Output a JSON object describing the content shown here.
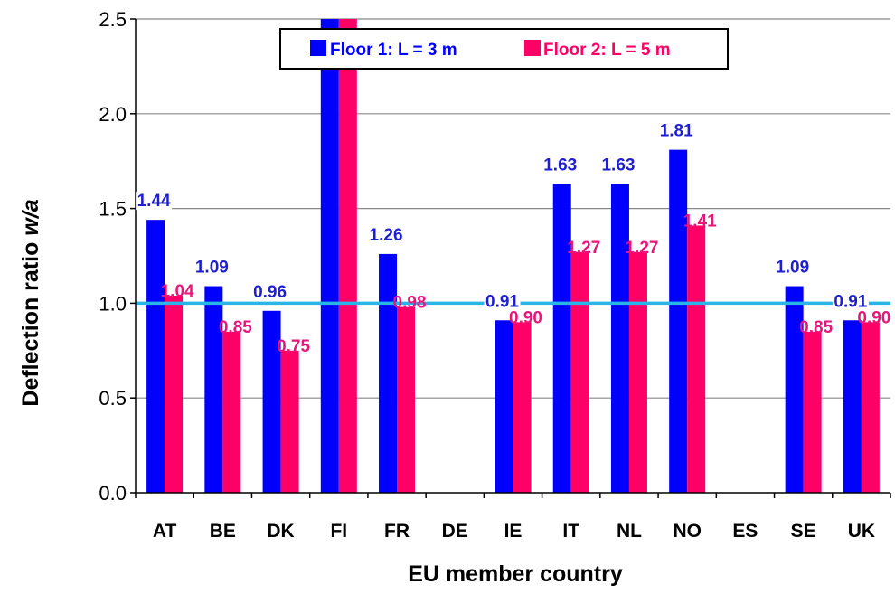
{
  "chart_data": {
    "type": "bar",
    "xlabel": "EU member country",
    "ylabel_main": "Deflection ratio ",
    "ylabel_italic": "w/a",
    "categories": [
      "AT",
      "BE",
      "DK",
      "FI",
      "FR",
      "DE",
      "IE",
      "IT",
      "NL",
      "NO",
      "ES",
      "SE",
      "UK"
    ],
    "series": [
      {
        "name": "Floor 1: L = 3 m",
        "color": "#0000ff",
        "label_color": "#1f1fd0",
        "values": [
          1.44,
          1.09,
          0.96,
          2.5,
          1.26,
          null,
          0.91,
          1.63,
          1.63,
          1.81,
          null,
          1.09,
          0.91
        ],
        "labels": [
          "1.44",
          "1.09",
          "0.96",
          "",
          "1.26",
          "",
          "0.91",
          "1.63",
          "1.63",
          "1.81",
          "",
          "1.09",
          "0.91"
        ]
      },
      {
        "name": "Floor 2: L = 5 m",
        "color": "#ff0066",
        "label_color": "#e8157a",
        "values": [
          1.04,
          0.85,
          0.75,
          2.5,
          0.98,
          null,
          0.9,
          1.27,
          1.27,
          1.41,
          null,
          0.85,
          0.9
        ],
        "labels": [
          "1.04",
          "0.85",
          "0.75",
          "",
          "0.98",
          "",
          "0.90",
          "1.27",
          "1.27",
          "1.41",
          "",
          "0.85",
          "0.90"
        ]
      }
    ],
    "ylim": [
      0,
      2.5
    ],
    "yticks": [
      "0.0",
      "0.5",
      "1.0",
      "1.5",
      "2.0",
      "2.5"
    ],
    "reference_line": {
      "value": 1.0,
      "color": "#29b6e6"
    },
    "grid": true,
    "legend_position": "top-center"
  }
}
